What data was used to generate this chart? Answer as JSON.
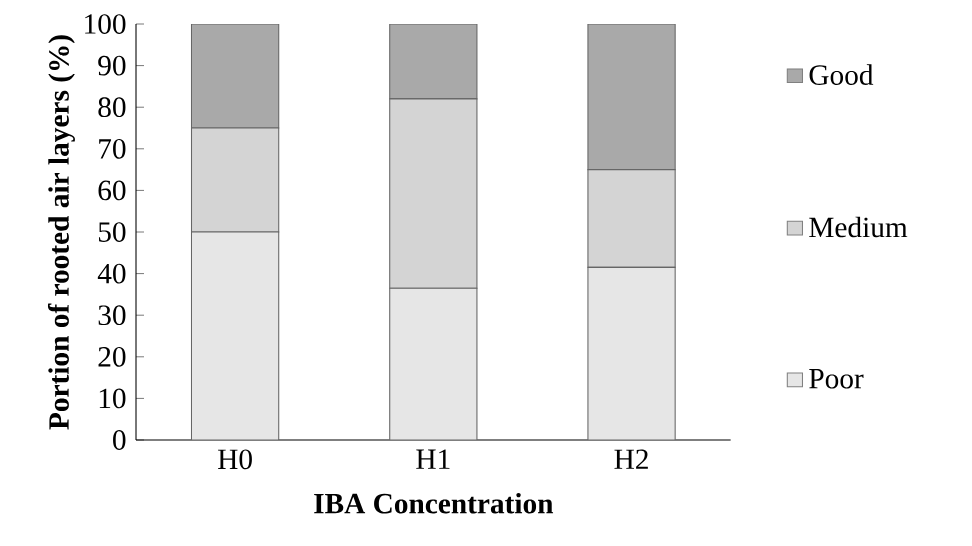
{
  "chart_data": {
    "type": "bar",
    "stacked": true,
    "categories": [
      "H0",
      "H1",
      "H2"
    ],
    "series": [
      {
        "name": "Poor",
        "color": "#e6e6e6",
        "values": [
          50,
          36.5,
          41.5
        ]
      },
      {
        "name": "Medium",
        "color": "#d4d4d4",
        "values": [
          25,
          45.5,
          23.5
        ]
      },
      {
        "name": "Good",
        "color": "#a9a9a9",
        "values": [
          25,
          18,
          35
        ]
      }
    ],
    "xlabel": "IBA Concentration",
    "ylabel": "Portion of rooted air layers (%)",
    "ylim": [
      0,
      100
    ],
    "yticks": [
      0,
      10,
      20,
      30,
      40,
      50,
      60,
      70,
      80,
      90,
      100
    ],
    "legend": "right"
  }
}
